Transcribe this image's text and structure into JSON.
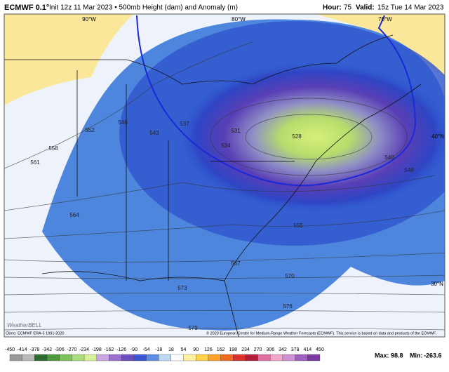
{
  "header": {
    "title": "ECMWF 0.1°",
    "subtitle": "Init 12z 11 Mar 2023 • 500mb Height (dam) and Anomaly (m)",
    "hour_label": "Hour:",
    "hour": "75",
    "valid_label": "Valid:",
    "valid": "15z Tue 14 Mar 2023"
  },
  "map": {
    "longitudes": [
      "90°W",
      "80°W",
      "70°W"
    ],
    "latitudes": [
      "40°N",
      "30°N"
    ],
    "contour_labels": [
      561,
      558,
      552,
      546,
      543,
      537,
      531,
      528,
      534,
      540,
      546,
      555,
      564,
      567,
      570,
      573,
      576,
      579
    ],
    "climo_note": "Climo: ECMWF ERA-5 1991-2020",
    "copyright": "© 2023 European Centre for Medium-Range Weather Forecasts (ECMWF). This service is based on data and products of the ECMWF.",
    "logo": "WeatherBELL"
  },
  "colorbar": {
    "ticks": [
      -450,
      -414,
      -378,
      -342,
      -306,
      -270,
      -234,
      -198,
      -162,
      -126,
      -90,
      -54,
      -18,
      18,
      54,
      90,
      126,
      162,
      198,
      234,
      270,
      306,
      342,
      378,
      414,
      450
    ],
    "colors": [
      "#9a9a9a",
      "#b8b8b8",
      "#2e6b2e",
      "#4e9a3e",
      "#7cc25a",
      "#a9dc7a",
      "#d6f09a",
      "#c9a6e0",
      "#9a6fd0",
      "#6b4fc0",
      "#3a56d0",
      "#5c8ee6",
      "#bcd8f4",
      "#fbfbfb",
      "#fff0a0",
      "#ffd24a",
      "#ffa030",
      "#f06a24",
      "#d8322a",
      "#b01e3a",
      "#e070a0",
      "#f0a8c8",
      "#d090d8",
      "#a060c0",
      "#7a3aa0"
    ]
  },
  "stats": {
    "max_label": "Max:",
    "max": 98.8,
    "min_label": "Min:",
    "min": -263.6
  }
}
